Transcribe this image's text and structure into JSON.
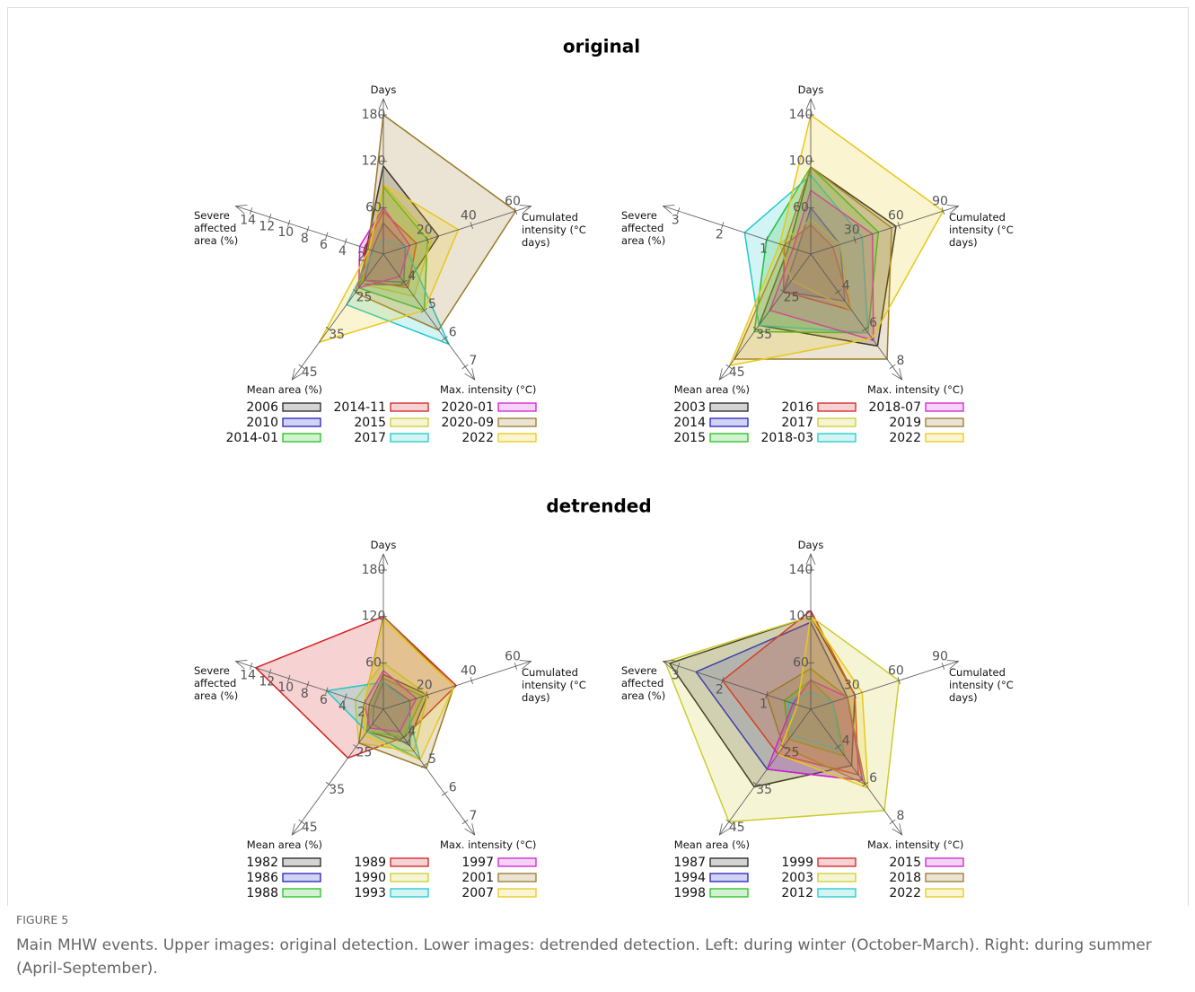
{
  "figure": {
    "titles": [
      "original",
      "detrended"
    ],
    "caption_label": "FIGURE 5",
    "caption": "Main MHW events. Upper images: original detection. Lower images: detrended detection. Left: during winter (October-March). Right: during summer (April-September)."
  },
  "chart_data": [
    {
      "type": "radar",
      "axes": [
        {
          "label": "Days",
          "lim": [
            0,
            180
          ],
          "ticks": [
            60,
            120,
            180
          ]
        },
        {
          "label": "Cumulated intensity (°C days)",
          "lim": [
            0,
            60
          ],
          "ticks": [
            20,
            40,
            60
          ]
        },
        {
          "label": "Max. intensity (°C)",
          "lim": [
            3,
            7
          ],
          "ticks": [
            4,
            5,
            6,
            7
          ]
        },
        {
          "label": "Mean area (%)",
          "lim": [
            15,
            45
          ],
          "ticks": [
            25,
            35,
            45
          ]
        },
        {
          "label": "Severe affected area (%)",
          "lim": [
            0,
            14
          ],
          "ticks": [
            2,
            4,
            6,
            8,
            10,
            12,
            14
          ]
        }
      ],
      "series": [
        {
          "name": "2006",
          "color": "#222222",
          "values": [
            114,
            25,
            4.1,
            23,
            1.8
          ]
        },
        {
          "name": "2010",
          "color": "#2020c0",
          "values": [
            40,
            10,
            4.0,
            22,
            1.2
          ]
        },
        {
          "name": "2014-01",
          "color": "#20c020",
          "values": [
            87,
            20,
            5.0,
            24,
            1.5
          ]
        },
        {
          "name": "2014-11",
          "color": "#d42020",
          "values": [
            55,
            15,
            4.2,
            22,
            2
          ]
        },
        {
          "name": "2015",
          "color": "#cccc30",
          "values": [
            90,
            22,
            4.5,
            23,
            1.5
          ]
        },
        {
          "name": "2017",
          "color": "#20c8c8",
          "values": [
            20,
            10,
            6.2,
            28.5,
            1
          ]
        },
        {
          "name": "2020-01",
          "color": "#d020d0",
          "values": [
            60,
            12,
            3.8,
            24,
            2.5
          ]
        },
        {
          "name": "2020-09",
          "color": "#9a7a2a",
          "values": [
            180,
            60,
            5.7,
            25.3,
            1.6
          ]
        },
        {
          "name": "2022",
          "color": "#e8c81a",
          "values": [
            90,
            34,
            5,
            38.5,
            1.5
          ]
        }
      ]
    },
    {
      "type": "radar",
      "axes": [
        {
          "label": "Days",
          "lim": [
            20,
            140
          ],
          "ticks": [
            60,
            100,
            140
          ]
        },
        {
          "label": "Cumulated intensity (°C days)",
          "lim": [
            0,
            90
          ],
          "ticks": [
            30,
            60,
            90
          ]
        },
        {
          "label": "Max. intensity (°C)",
          "lim": [
            2,
            8
          ],
          "ticks": [
            4,
            6,
            8
          ]
        },
        {
          "label": "Mean area (%)",
          "lim": [
            15,
            45
          ],
          "ticks": [
            25,
            35,
            45
          ]
        },
        {
          "label": "Severe affected area (%)",
          "lim": [
            0,
            3
          ],
          "ticks": [
            1,
            2,
            3
          ]
        }
      ],
      "series": [
        {
          "name": "2003",
          "color": "#222222",
          "values": [
            95,
            58,
            6.9,
            34,
            0.5
          ]
        },
        {
          "name": "2014",
          "color": "#2020c0",
          "values": [
            60,
            20,
            4.5,
            25,
            0.3
          ]
        },
        {
          "name": "2015",
          "color": "#20c020",
          "values": [
            95,
            46,
            6.2,
            35.7,
            1.0
          ]
        },
        {
          "name": "2016",
          "color": "#d42020",
          "values": [
            45,
            15,
            5,
            25,
            0.6
          ]
        },
        {
          "name": "2017",
          "color": "#cccc30",
          "values": [
            50,
            20,
            5,
            22,
            0.7
          ]
        },
        {
          "name": "2018-03",
          "color": "#20c8c8",
          "values": [
            88,
            35,
            6.2,
            34,
            1.5
          ]
        },
        {
          "name": "2018-07",
          "color": "#d020d0",
          "values": [
            75,
            42,
            6.6,
            30,
            0.4
          ]
        },
        {
          "name": "2019",
          "color": "#9a7a2a",
          "values": [
            95,
            55,
            7.6,
            43,
            0.6
          ]
        },
        {
          "name": "2022",
          "color": "#e8c81a",
          "values": [
            140,
            90,
            6.5,
            44.7,
            0.7
          ]
        }
      ]
    },
    {
      "type": "radar",
      "axes": [
        {
          "label": "Days",
          "lim": [
            0,
            180
          ],
          "ticks": [
            60,
            120,
            180
          ]
        },
        {
          "label": "Cumulated intensity (°C days)",
          "lim": [
            0,
            60
          ],
          "ticks": [
            20,
            40,
            60
          ]
        },
        {
          "label": "Max. intensity (°C)",
          "lim": [
            3,
            7
          ],
          "ticks": [
            4,
            5,
            6,
            7
          ]
        },
        {
          "label": "Mean area (%)",
          "lim": [
            15,
            45
          ],
          "ticks": [
            25,
            35,
            45
          ]
        },
        {
          "label": "Severe affected area (%)",
          "lim": [
            0,
            14
          ],
          "ticks": [
            2,
            4,
            6,
            8,
            10,
            12,
            14
          ]
        }
      ],
      "series": [
        {
          "name": "1982",
          "color": "#222222",
          "values": [
            45,
            20,
            4.2,
            21,
            1.5
          ]
        },
        {
          "name": "1986",
          "color": "#2020c0",
          "values": [
            35,
            12,
            4.3,
            19,
            1
          ]
        },
        {
          "name": "1988",
          "color": "#20c020",
          "values": [
            40,
            18,
            4.0,
            21,
            1.2
          ]
        },
        {
          "name": "1989",
          "color": "#d42020",
          "values": [
            120,
            33,
            4,
            28,
            13.5
          ]
        },
        {
          "name": "1990",
          "color": "#cccc30",
          "values": [
            60,
            20,
            4.5,
            24,
            3
          ]
        },
        {
          "name": "1993",
          "color": "#20c8c8",
          "values": [
            35,
            10,
            4.8,
            21,
            6
          ]
        },
        {
          "name": "1997",
          "color": "#d020d0",
          "values": [
            50,
            15,
            3.8,
            20,
            2
          ]
        },
        {
          "name": "2001",
          "color": "#9a7a2a",
          "values": [
            120,
            32,
            5.1,
            24,
            2
          ]
        },
        {
          "name": "2007",
          "color": "#e8c81a",
          "values": [
            115,
            32,
            4.8,
            22,
            2
          ]
        }
      ]
    },
    {
      "type": "radar",
      "axes": [
        {
          "label": "Days",
          "lim": [
            20,
            140
          ],
          "ticks": [
            60,
            100,
            140
          ]
        },
        {
          "label": "Cumulated intensity (°C days)",
          "lim": [
            0,
            90
          ],
          "ticks": [
            30,
            60,
            90
          ]
        },
        {
          "label": "Max. intensity (°C)",
          "lim": [
            2,
            8
          ],
          "ticks": [
            4,
            6,
            8
          ]
        },
        {
          "label": "Mean area (%)",
          "lim": [
            15,
            45
          ],
          "ticks": [
            25,
            35,
            45
          ]
        },
        {
          "label": "Severe affected area (%)",
          "lim": [
            0,
            3
          ],
          "ticks": [
            1,
            2,
            3
          ]
        }
      ],
      "series": [
        {
          "name": "1987",
          "color": "#222222",
          "values": [
            100,
            30,
            5,
            35.7,
            3.2
          ]
        },
        {
          "name": "1994",
          "color": "#2020c0",
          "values": [
            95,
            25,
            5.8,
            31,
            2.6
          ]
        },
        {
          "name": "1998",
          "color": "#20c020",
          "values": [
            45,
            15,
            4.5,
            23,
            0.6
          ]
        },
        {
          "name": "1999",
          "color": "#d42020",
          "values": [
            105,
            30,
            5.5,
            27,
            2.0
          ]
        },
        {
          "name": "2003",
          "color": "#cccc30",
          "values": [
            100,
            60,
            7.4,
            45,
            3.3
          ]
        },
        {
          "name": "2012",
          "color": "#20c8c8",
          "values": [
            35,
            15,
            4.2,
            22,
            0.5
          ]
        },
        {
          "name": "2015",
          "color": "#d020d0",
          "values": [
            45,
            25,
            5.8,
            31,
            0.4
          ]
        },
        {
          "name": "2018",
          "color": "#9a7a2a",
          "values": [
            55,
            25,
            6,
            25,
            1.0
          ]
        },
        {
          "name": "2022",
          "color": "#e8c81a",
          "values": [
            100,
            35,
            6.2,
            27,
            0.3
          ]
        }
      ]
    }
  ]
}
